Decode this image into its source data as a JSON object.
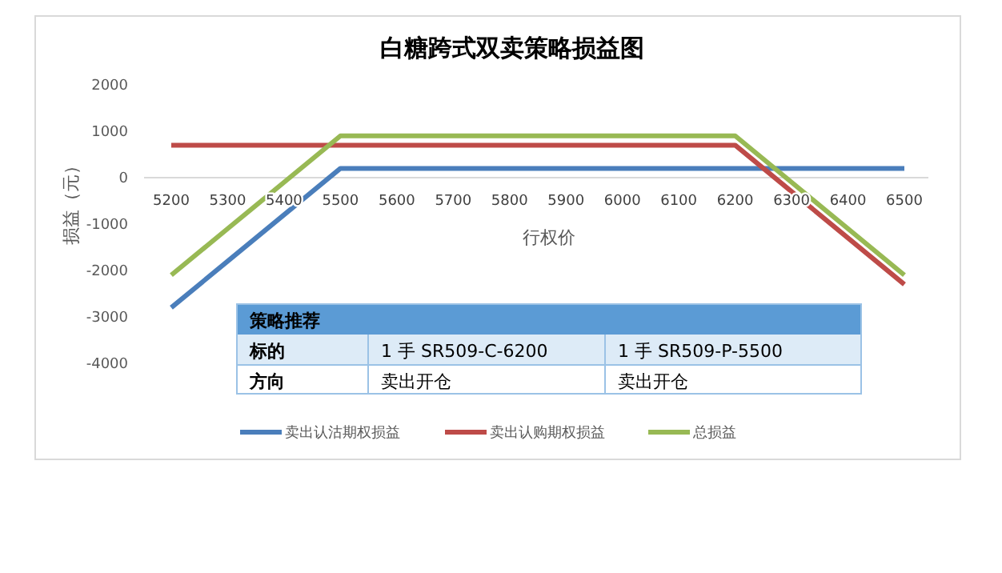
{
  "chart_data": {
    "type": "line",
    "title": "白糖跨式双卖策略损益图",
    "xlabel": "行权价",
    "ylabel": "损益（元）",
    "categories": [
      "5200",
      "5300",
      "5400",
      "5500",
      "5600",
      "5700",
      "5800",
      "5900",
      "6000",
      "6100",
      "6200",
      "6300",
      "6400",
      "6500"
    ],
    "series": [
      {
        "name": "卖出认沽期权损益",
        "color": "#4a7ebb",
        "values": [
          -2800,
          -1800,
          -800,
          200,
          200,
          200,
          200,
          200,
          200,
          200,
          200,
          200,
          200,
          200
        ]
      },
      {
        "name": "卖出认购期权损益",
        "color": "#be4b48",
        "values": [
          700,
          700,
          700,
          700,
          700,
          700,
          700,
          700,
          700,
          700,
          700,
          -300,
          -1300,
          -2300
        ]
      },
      {
        "name": "总损益",
        "color": "#98b954",
        "values": [
          -2100,
          -1100,
          -100,
          900,
          900,
          900,
          900,
          900,
          900,
          900,
          900,
          -100,
          -1100,
          -2100
        ]
      }
    ],
    "ylim": [
      -4000,
      2000
    ],
    "yticks": [
      -4000,
      -3000,
      -2000,
      -1000,
      0,
      1000,
      2000
    ],
    "grid": false,
    "legend": "bottom",
    "marker": "none",
    "line_style": "solid",
    "annotations": [
      "策略推荐",
      "标的",
      "1 手 SR509-C-6200",
      "1 手 SR509-P-5500",
      "方向",
      "卖出开仓",
      "卖出开仓"
    ]
  }
}
